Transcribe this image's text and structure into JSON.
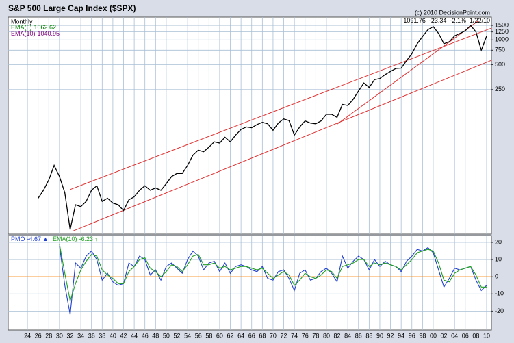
{
  "chart_data": [
    {
      "type": "line",
      "title": "S&P 500 Large Cap Index ($SPX)",
      "copyright": "(c) 2010 DecisionPoint.com",
      "quote": [
        "1091.76",
        "-23.34",
        "-2.1%",
        "1/22/10"
      ],
      "period": "Monthly",
      "indicators": [
        {
          "label": "EMA(6)",
          "value": 1062.62,
          "color": "#008000"
        },
        {
          "label": "EMA(10)",
          "value": 1040.95,
          "color": "#800080"
        }
      ],
      "log_scale": true,
      "xlim": [
        1920.4,
        2010.9
      ],
      "ylim": [
        4.4,
        1890
      ],
      "yticks": [
        250,
        500,
        750,
        1000,
        1250,
        1500
      ],
      "grid": true,
      "x": [
        1926,
        1927,
        1928,
        1929,
        1930,
        1931,
        1932,
        1933,
        1934,
        1935,
        1936,
        1937,
        1938,
        1939,
        1940,
        1941,
        1942,
        1943,
        1944,
        1945,
        1946,
        1947,
        1948,
        1949,
        1950,
        1951,
        1952,
        1953,
        1954,
        1955,
        1956,
        1957,
        1958,
        1959,
        1960,
        1961,
        1962,
        1963,
        1964,
        1965,
        1966,
        1967,
        1968,
        1969,
        1970,
        1971,
        1972,
        1973,
        1974,
        1975,
        1976,
        1977,
        1978,
        1979,
        1980,
        1981,
        1982,
        1983,
        1984,
        1985,
        1986,
        1987,
        1988,
        1989,
        1990,
        1991,
        1992,
        1993,
        1994,
        1995,
        1996,
        1997,
        1998,
        1999,
        2000,
        2001,
        2002,
        2003,
        2004,
        2005,
        2006,
        2007,
        2008,
        2009,
        2010
      ],
      "series": [
        {
          "color": "#000000",
          "values": [
            12,
            15,
            20,
            30,
            22,
            14,
            5,
            10,
            9.5,
            11,
            15,
            17,
            11,
            12,
            10.5,
            10,
            8.5,
            11.5,
            12.5,
            15,
            17,
            15,
            16,
            15,
            18,
            22,
            24,
            24,
            30,
            40,
            46,
            44,
            50,
            58,
            56,
            66,
            58,
            70,
            82,
            88,
            86,
            94,
            100,
            96,
            80,
            98,
            110,
            105,
            70,
            88,
            104,
            98,
            96,
            104,
            125,
            125,
            115,
            165,
            160,
            190,
            240,
            300,
            265,
            330,
            340,
            380,
            415,
            450,
            455,
            560,
            680,
            900,
            1100,
            1330,
            1450,
            1200,
            900,
            950,
            1120,
            1200,
            1290,
            1500,
            1250,
            750,
            1115
          ]
        }
      ],
      "trendlines": [
        {
          "color": "#e03030",
          "x": [
            1932,
            2010.9
          ],
          "y": [
            15.3,
            1390
          ]
        },
        {
          "color": "#e03030",
          "x": [
            1932.5,
            2010.9
          ],
          "y": [
            4.8,
            566
          ]
        },
        {
          "color": "#e03030",
          "x": [
            1982,
            2008.5
          ],
          "y": [
            95,
            1716
          ]
        }
      ]
    },
    {
      "type": "line",
      "xlim": [
        1920.4,
        2010.9
      ],
      "ylim": [
        -31,
        24
      ],
      "yticks": [
        20,
        10,
        0,
        -10,
        -20
      ],
      "zero_line": "#ff8000",
      "grid": true,
      "xticks": [
        {
          "value": 1924,
          "label": "24"
        },
        {
          "value": 1926,
          "label": "26"
        },
        {
          "value": 1928,
          "label": "28"
        },
        {
          "value": 1930,
          "label": "30"
        },
        {
          "value": 1932,
          "label": "32"
        },
        {
          "value": 1934,
          "label": "34"
        },
        {
          "value": 1936,
          "label": "36"
        },
        {
          "value": 1938,
          "label": "38"
        },
        {
          "value": 1940,
          "label": "40"
        },
        {
          "value": 1942,
          "label": "42"
        },
        {
          "value": 1944,
          "label": "44"
        },
        {
          "value": 1946,
          "label": "46"
        },
        {
          "value": 1948,
          "label": "48"
        },
        {
          "value": 1950,
          "label": "50"
        },
        {
          "value": 1952,
          "label": "52"
        },
        {
          "value": 1954,
          "label": "54"
        },
        {
          "value": 1956,
          "label": "56"
        },
        {
          "value": 1958,
          "label": "58"
        },
        {
          "value": 1960,
          "label": "60"
        },
        {
          "value": 1962,
          "label": "62"
        },
        {
          "value": 1964,
          "label": "64"
        },
        {
          "value": 1966,
          "label": "66"
        },
        {
          "value": 1968,
          "label": "68"
        },
        {
          "value": 1970,
          "label": "70"
        },
        {
          "value": 1972,
          "label": "72"
        },
        {
          "value": 1974,
          "label": "74"
        },
        {
          "value": 1976,
          "label": "76"
        },
        {
          "value": 1978,
          "label": "78"
        },
        {
          "value": 1980,
          "label": "80"
        },
        {
          "value": 1982,
          "label": "82"
        },
        {
          "value": 1984,
          "label": "84"
        },
        {
          "value": 1986,
          "label": "86"
        },
        {
          "value": 1988,
          "label": "88"
        },
        {
          "value": 1990,
          "label": "90"
        },
        {
          "value": 1992,
          "label": "92"
        },
        {
          "value": 1994,
          "label": "94"
        },
        {
          "value": 1996,
          "label": "96"
        },
        {
          "value": 1998,
          "label": "98"
        },
        {
          "value": 2000,
          "label": "00"
        },
        {
          "value": 2002,
          "label": "02"
        },
        {
          "value": 2004,
          "label": "04"
        },
        {
          "value": 2006,
          "label": "06"
        },
        {
          "value": 2008,
          "label": "08"
        },
        {
          "value": 2010,
          "label": "10"
        }
      ],
      "x": [
        1930,
        1931,
        1932,
        1933,
        1934,
        1935,
        1936,
        1937,
        1938,
        1939,
        1940,
        1941,
        1942,
        1943,
        1944,
        1945,
        1946,
        1947,
        1948,
        1949,
        1950,
        1951,
        1952,
        1953,
        1954,
        1955,
        1956,
        1957,
        1958,
        1959,
        1960,
        1961,
        1962,
        1963,
        1964,
        1965,
        1966,
        1967,
        1968,
        1969,
        1970,
        1971,
        1972,
        1973,
        1974,
        1975,
        1976,
        1977,
        1978,
        1979,
        1980,
        1981,
        1982,
        1983,
        1984,
        1985,
        1986,
        1987,
        1988,
        1989,
        1990,
        1991,
        1992,
        1993,
        1994,
        1995,
        1996,
        1997,
        1998,
        1999,
        2000,
        2001,
        2002,
        2003,
        2004,
        2005,
        2006,
        2007,
        2008,
        2009,
        2010
      ],
      "series": [
        {
          "name": "PMO",
          "last": -4.67,
          "arrow": "▲",
          "color": "#2040d0",
          "values": [
            18,
            -5,
            -22,
            8,
            5,
            12,
            15,
            10,
            -2,
            2,
            -3,
            -5,
            -4,
            8,
            6,
            12,
            10,
            1,
            4,
            -2,
            6,
            8,
            5,
            2,
            10,
            15,
            12,
            4,
            8,
            9,
            3,
            8,
            2,
            6,
            7,
            6,
            4,
            3,
            6,
            -1,
            -2,
            3,
            4,
            -1,
            -8,
            2,
            4,
            -2,
            -1,
            3,
            5,
            2,
            -3,
            12,
            5,
            9,
            12,
            10,
            4,
            10,
            6,
            9,
            7,
            6,
            3,
            9,
            12,
            16,
            15,
            17,
            14,
            4,
            -6,
            -1,
            5,
            4,
            5,
            6,
            -2,
            -8,
            -5
          ]
        },
        {
          "name": "EMA(10)",
          "last": -6.23,
          "arrow": "↑",
          "color": "#20a020",
          "values": [
            19,
            2,
            -14,
            -4,
            4,
            9,
            13,
            12,
            4,
            1,
            -1,
            -4,
            -4,
            3,
            6,
            10,
            11,
            5,
            3,
            0,
            3,
            7,
            6,
            3,
            7,
            12,
            13,
            7,
            7,
            8,
            5,
            6,
            4,
            5,
            6,
            6,
            5,
            4,
            5,
            2,
            -1,
            1,
            3,
            1,
            -5,
            -2,
            2,
            0,
            -1,
            1,
            4,
            3,
            -1,
            6,
            7,
            8,
            10,
            10,
            6,
            8,
            7,
            8,
            7,
            6,
            4,
            7,
            10,
            14,
            15,
            16,
            15,
            8,
            -2,
            -3,
            2,
            4,
            5,
            6,
            1,
            -6,
            -6
          ]
        }
      ]
    }
  ]
}
